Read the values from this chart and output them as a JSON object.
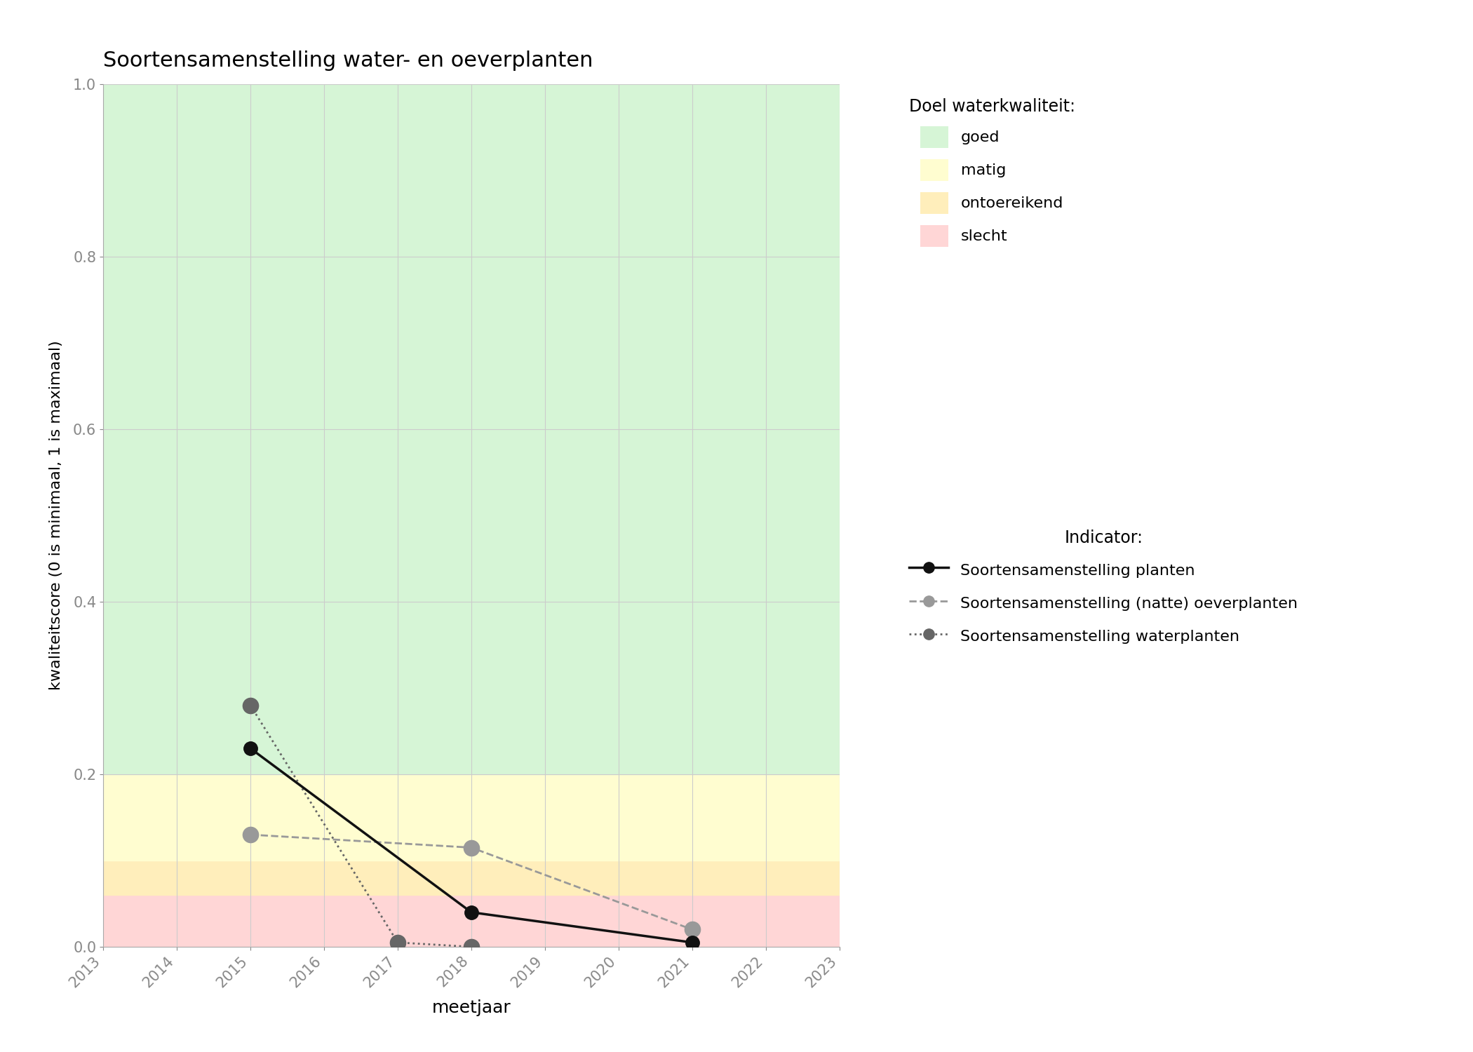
{
  "title": "Soortensamenstelling water- en oeverplanten",
  "xlabel": "meetjaar",
  "ylabel": "kwaliteitscore (0 is minimaal, 1 is maximaal)",
  "xlim": [
    2013,
    2023
  ],
  "ylim": [
    0.0,
    1.0
  ],
  "xticks": [
    2013,
    2014,
    2015,
    2016,
    2017,
    2018,
    2019,
    2020,
    2021,
    2022,
    2023
  ],
  "yticks": [
    0.0,
    0.2,
    0.4,
    0.6,
    0.8,
    1.0
  ],
  "bg_colors": {
    "goed": "#d6f5d6",
    "matig": "#fffdd0",
    "ontoereikend": "#ffeebb",
    "slecht": "#ffd6d6"
  },
  "bg_ranges": {
    "goed": [
      0.2,
      1.0
    ],
    "matig": [
      0.1,
      0.2
    ],
    "ontoereikend": [
      0.06,
      0.1
    ],
    "slecht": [
      0.0,
      0.06
    ]
  },
  "series_planten": {
    "x": [
      2015,
      2018,
      2021
    ],
    "y": [
      0.23,
      0.04,
      0.005
    ],
    "color": "#111111",
    "linestyle": "solid",
    "linewidth": 2.5,
    "markersize": 14,
    "marker": "o",
    "label": "Soortensamenstelling planten"
  },
  "series_oeverplanten": {
    "x": [
      2015,
      2018,
      2021
    ],
    "y": [
      0.13,
      0.115,
      0.02
    ],
    "color": "#999999",
    "linestyle": "dashed",
    "linewidth": 2.0,
    "markersize": 16,
    "marker": "o",
    "label": "Soortensamenstelling (natte) oeverplanten"
  },
  "series_waterplanten": {
    "x": [
      2015,
      2017,
      2018
    ],
    "y": [
      0.28,
      0.005,
      0.0
    ],
    "color": "#666666",
    "linestyle": "dotted",
    "linewidth": 2.0,
    "markersize": 16,
    "marker": "o",
    "label": "Soortensamenstelling waterplanten"
  },
  "legend_doel_title": "Doel waterkwaliteit:",
  "legend_indicator_title": "Indicator:",
  "background_color": "#ffffff",
  "grid_color": "#cccccc",
  "figsize": [
    21.0,
    15.0
  ],
  "dpi": 100
}
